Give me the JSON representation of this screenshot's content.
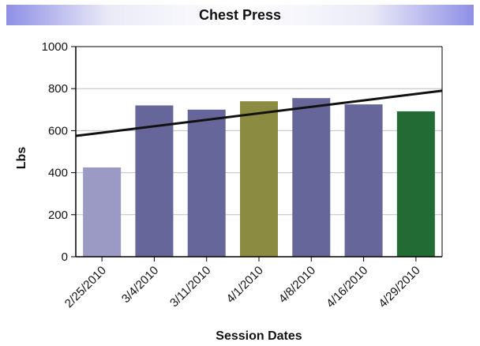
{
  "chart_data": {
    "type": "bar",
    "title": "Chest Press",
    "xlabel": "Session Dates",
    "ylabel": "Lbs",
    "categories": [
      "2/25/2010",
      "3/4/2010",
      "3/11/2010",
      "4/1/2010",
      "4/8/2010",
      "4/16/2010",
      "4/29/2010"
    ],
    "values": [
      425,
      720,
      700,
      740,
      755,
      725,
      692
    ],
    "bar_colors": [
      "#9a9ac4",
      "#66669a",
      "#66669a",
      "#8b8b42",
      "#66669a",
      "#66669a",
      "#226b34"
    ],
    "trendline": {
      "start": 575,
      "end": 790,
      "color": "#111111"
    },
    "ylim": [
      0,
      1000
    ],
    "yticks": [
      0,
      200,
      400,
      600,
      800,
      1000
    ],
    "grid": true,
    "legend": "none"
  },
  "colors": {
    "title_bar_edge": "#8f8fe6",
    "gridline": "#c0c0c0",
    "axis": "#000000"
  }
}
